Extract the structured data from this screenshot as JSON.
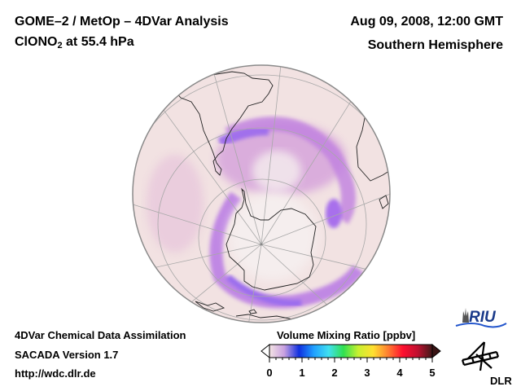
{
  "header": {
    "title_line1": "GOME–2 / MetOp – 4DVar Analysis",
    "species_main": "ClONO",
    "species_sub": "2",
    "species_rest": " at 55.4 hPa",
    "datetime": "Aug 09, 2008, 12:00 GMT",
    "region": "Southern Hemisphere"
  },
  "footer": {
    "line1": "4DVar Chemical Data Assimilation",
    "line2": "SACADA Version 1.7",
    "line3": "http://wdc.dlr.de"
  },
  "colorbar": {
    "title": "Volume Mixing Ratio [ppbv]",
    "min": 0,
    "max": 5,
    "tick_labels": [
      "0",
      "1",
      "2",
      "3",
      "4",
      "5"
    ],
    "colors": [
      "#f4e4e4",
      "#c8a0e0",
      "#1030e0",
      "#20a0ff",
      "#40e0f0",
      "#30e050",
      "#c8f030",
      "#ffe030",
      "#ff8030",
      "#ff1030",
      "#c01030",
      "#401818"
    ],
    "extend": "both"
  },
  "map": {
    "projection": "orthographic",
    "hemisphere": "south",
    "background_color": "#f2e2e2",
    "low_value_color": "#f5eeee",
    "high_band_color": "#b070e8"
  },
  "logos": {
    "riu": "RIU",
    "dlr": "DLR"
  }
}
